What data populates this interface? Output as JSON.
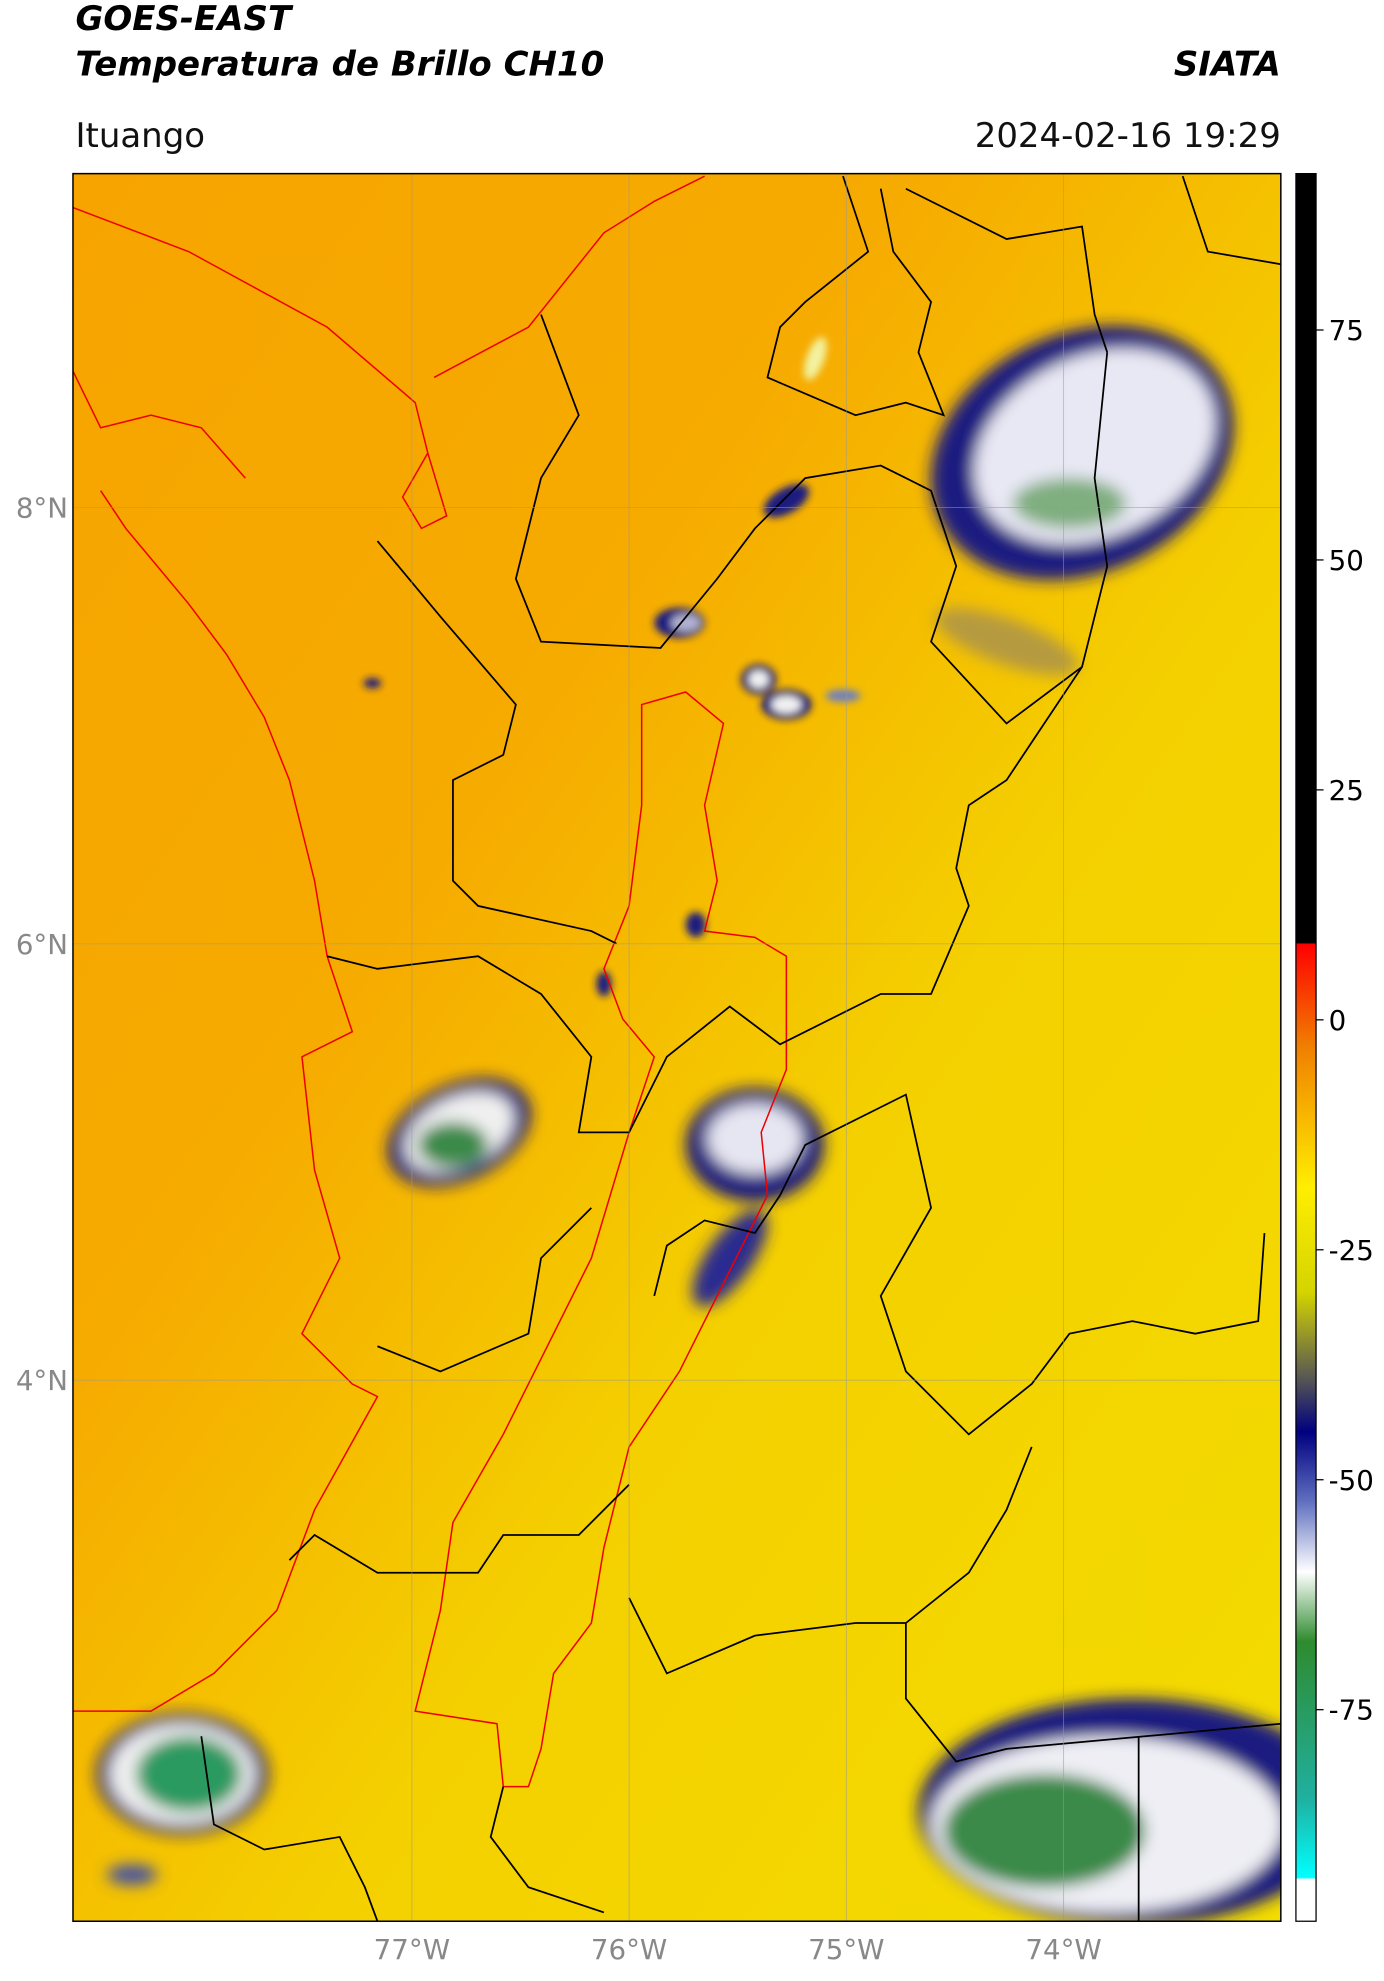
{
  "header": {
    "title": "GOES-EAST",
    "product": "Temperatura de Brillo CH10",
    "source": "SIATA",
    "location": "Ituango",
    "datetime": "2024-02-16 19:29"
  },
  "map": {
    "xlim": [
      -78.56,
      -73.0
    ],
    "ylim": [
      1.52,
      9.53
    ],
    "xticks": [
      {
        "value": -77,
        "label": "77°W"
      },
      {
        "value": -76,
        "label": "76°W"
      },
      {
        "value": -75,
        "label": "75°W"
      },
      {
        "value": -74,
        "label": "74°W"
      }
    ],
    "yticks": [
      {
        "value": 8,
        "label": "8°N"
      },
      {
        "value": 6,
        "label": "6°N"
      },
      {
        "value": 4,
        "label": "4°N"
      }
    ],
    "grid": true
  },
  "colorbar": {
    "lim": [
      -98,
      92
    ],
    "ticks": [
      75,
      50,
      25,
      0,
      -25,
      -50,
      -75
    ]
  }
}
